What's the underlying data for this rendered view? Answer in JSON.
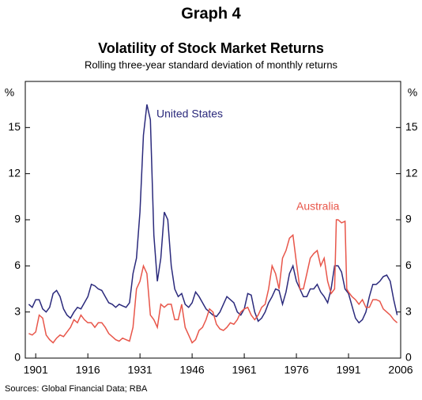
{
  "chart_data": {
    "type": "line",
    "title": "Graph 4",
    "subtitle": "Volatility of Stock Market Returns",
    "description": "Rolling three-year standard deviation of monthly returns",
    "y_label": "%",
    "y2_label": "%",
    "source": "Sources: Global Financial Data; RBA",
    "xlim": [
      1898,
      2006
    ],
    "xticks": [
      1901,
      1916,
      1931,
      1946,
      1961,
      1976,
      1991,
      2006
    ],
    "ylim": [
      0,
      18
    ],
    "yticks": [
      0,
      3,
      6,
      9,
      12,
      15
    ],
    "y2lim": [
      0,
      18
    ],
    "y2ticks": [
      0,
      3,
      6,
      9,
      12,
      15
    ],
    "grid": false,
    "series": [
      {
        "name": "United States",
        "color": "#2b2a7c",
        "x": [
          1899,
          1900,
          1901,
          1902,
          1903,
          1904,
          1905,
          1906,
          1907,
          1908,
          1909,
          1910,
          1911,
          1912,
          1913,
          1914,
          1915,
          1916,
          1917,
          1918,
          1919,
          1920,
          1921,
          1922,
          1923,
          1924,
          1925,
          1926,
          1927,
          1928,
          1929,
          1930,
          1931,
          1932,
          1933,
          1934,
          1935,
          1936,
          1937,
          1938,
          1939,
          1940,
          1941,
          1942,
          1943,
          1944,
          1945,
          1946,
          1947,
          1948,
          1949,
          1950,
          1951,
          1952,
          1953,
          1954,
          1955,
          1956,
          1957,
          1958,
          1959,
          1960,
          1961,
          1962,
          1963,
          1964,
          1965,
          1966,
          1967,
          1968,
          1969,
          1970,
          1971,
          1972,
          1973,
          1974,
          1975,
          1976,
          1977,
          1978,
          1979,
          1980,
          1981,
          1982,
          1983,
          1984,
          1985,
          1986,
          1987,
          1988,
          1989,
          1990,
          1991,
          1992,
          1993,
          1994,
          1995,
          1996,
          1997,
          1998,
          1999,
          2000,
          2001,
          2002,
          2003,
          2004,
          2005
        ],
        "values": [
          3.5,
          3.3,
          3.8,
          3.8,
          3.2,
          3.0,
          3.3,
          4.2,
          4.4,
          4.0,
          3.2,
          2.8,
          2.6,
          3.0,
          3.3,
          3.2,
          3.6,
          4.0,
          4.8,
          4.7,
          4.5,
          4.4,
          4.0,
          3.6,
          3.5,
          3.3,
          3.5,
          3.4,
          3.3,
          3.6,
          5.5,
          6.5,
          9.5,
          14.5,
          16.5,
          15.5,
          8.0,
          5.0,
          6.5,
          9.5,
          9.0,
          6.0,
          4.5,
          4.0,
          4.2,
          3.5,
          3.3,
          3.6,
          4.3,
          4.0,
          3.6,
          3.2,
          3.0,
          2.8,
          2.7,
          3.0,
          3.5,
          4.0,
          3.8,
          3.6,
          3.0,
          2.8,
          3.2,
          4.2,
          4.1,
          3.0,
          2.4,
          2.6,
          3.0,
          3.6,
          4.0,
          4.5,
          4.4,
          3.5,
          4.3,
          5.5,
          6.0,
          5.0,
          4.5,
          4.0,
          4.0,
          4.5,
          4.5,
          4.8,
          4.3,
          4.0,
          3.6,
          4.5,
          6.0,
          6.0,
          5.6,
          4.5,
          4.2,
          3.4,
          2.6,
          2.3,
          2.5,
          3.0,
          4.0,
          4.8,
          4.8,
          5.0,
          5.3,
          5.4,
          5.0,
          3.8,
          2.8
        ]
      },
      {
        "name": "Australia",
        "color": "#e8564a",
        "x": [
          1899,
          1900,
          1901,
          1902,
          1903,
          1904,
          1905,
          1906,
          1907,
          1908,
          1909,
          1910,
          1911,
          1912,
          1913,
          1914,
          1915,
          1916,
          1917,
          1918,
          1919,
          1920,
          1921,
          1922,
          1923,
          1924,
          1925,
          1926,
          1927,
          1928,
          1929,
          1930,
          1931,
          1932,
          1933,
          1934,
          1935,
          1936,
          1937,
          1938,
          1939,
          1940,
          1941,
          1942,
          1943,
          1944,
          1945,
          1946,
          1947,
          1948,
          1949,
          1950,
          1951,
          1952,
          1953,
          1954,
          1955,
          1956,
          1957,
          1958,
          1959,
          1960,
          1961,
          1962,
          1963,
          1964,
          1965,
          1966,
          1967,
          1968,
          1969,
          1970,
          1971,
          1972,
          1973,
          1974,
          1975,
          1976,
          1977,
          1978,
          1979,
          1980,
          1981,
          1982,
          1983,
          1984,
          1985,
          1986,
          1987,
          1987.5,
          1988,
          1989,
          1990,
          1990.5,
          1991,
          1992,
          1993,
          1994,
          1995,
          1996,
          1997,
          1998,
          1999,
          2000,
          2001,
          2002,
          2003,
          2004,
          2005
        ],
        "values": [
          1.6,
          1.5,
          1.7,
          2.8,
          2.6,
          1.5,
          1.2,
          1.0,
          1.3,
          1.5,
          1.4,
          1.7,
          2.0,
          2.5,
          2.3,
          2.8,
          2.5,
          2.3,
          2.3,
          2.0,
          2.3,
          2.3,
          2.0,
          1.6,
          1.4,
          1.2,
          1.1,
          1.3,
          1.2,
          1.1,
          2.0,
          4.5,
          5.0,
          6.0,
          5.5,
          2.8,
          2.5,
          2.0,
          3.5,
          3.3,
          3.5,
          3.5,
          2.5,
          2.5,
          3.5,
          2.0,
          1.5,
          1.0,
          1.2,
          1.8,
          2.0,
          2.5,
          3.2,
          3.0,
          2.2,
          1.9,
          1.8,
          2.0,
          2.3,
          2.2,
          2.5,
          3.0,
          3.2,
          3.3,
          2.8,
          2.5,
          2.8,
          3.3,
          3.5,
          4.5,
          6.0,
          5.5,
          4.5,
          6.5,
          7.0,
          7.8,
          8.0,
          6.2,
          4.5,
          4.5,
          5.5,
          6.5,
          6.8,
          7.0,
          6.0,
          6.5,
          5.0,
          4.2,
          4.5,
          9.0,
          9.0,
          8.8,
          8.9,
          4.5,
          4.3,
          4.0,
          3.8,
          3.5,
          3.8,
          3.3,
          3.3,
          3.8,
          3.8,
          3.7,
          3.2,
          3.0,
          2.8,
          2.5,
          2.3
        ]
      }
    ]
  }
}
